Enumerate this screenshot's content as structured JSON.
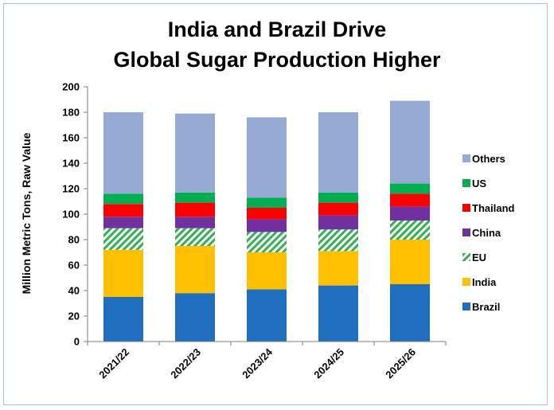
{
  "chart_data": {
    "type": "bar",
    "stacked": true,
    "title_line1": "India and Brazil Drive",
    "title_line2": "Global Sugar Production Higher",
    "ylabel": "Million Metric Tons, Raw Value",
    "xlabel": "",
    "ylim": [
      0,
      200
    ],
    "yticks": [
      0,
      20,
      40,
      60,
      80,
      100,
      120,
      140,
      160,
      180,
      200
    ],
    "grid": false,
    "legend_position": "right",
    "categories": [
      "2021/22",
      "2022/23",
      "2023/24",
      "2024/25",
      "2025/26"
    ],
    "series": [
      {
        "name": "Brazil",
        "color": "#1f6fbf",
        "pattern": "solid",
        "values": [
          35,
          38,
          41,
          44,
          45
        ]
      },
      {
        "name": "India",
        "color": "#ffc000",
        "pattern": "solid",
        "values": [
          37,
          37,
          29,
          27,
          35
        ]
      },
      {
        "name": "EU",
        "color": "#2fb34f",
        "pattern": "hatch",
        "values": [
          17,
          14,
          16,
          17,
          15
        ]
      },
      {
        "name": "China",
        "color": "#7030a0",
        "pattern": "solid",
        "values": [
          9,
          9,
          10,
          11,
          11
        ]
      },
      {
        "name": "Thailand",
        "color": "#ff0000",
        "pattern": "solid",
        "values": [
          10,
          11,
          9,
          10,
          10
        ]
      },
      {
        "name": "US",
        "color": "#00b050",
        "pattern": "solid",
        "values": [
          8,
          8,
          8,
          8,
          8
        ]
      },
      {
        "name": "Others",
        "color": "#96abd4",
        "pattern": "solid",
        "values": [
          64,
          62,
          63,
          63,
          65
        ]
      }
    ]
  }
}
